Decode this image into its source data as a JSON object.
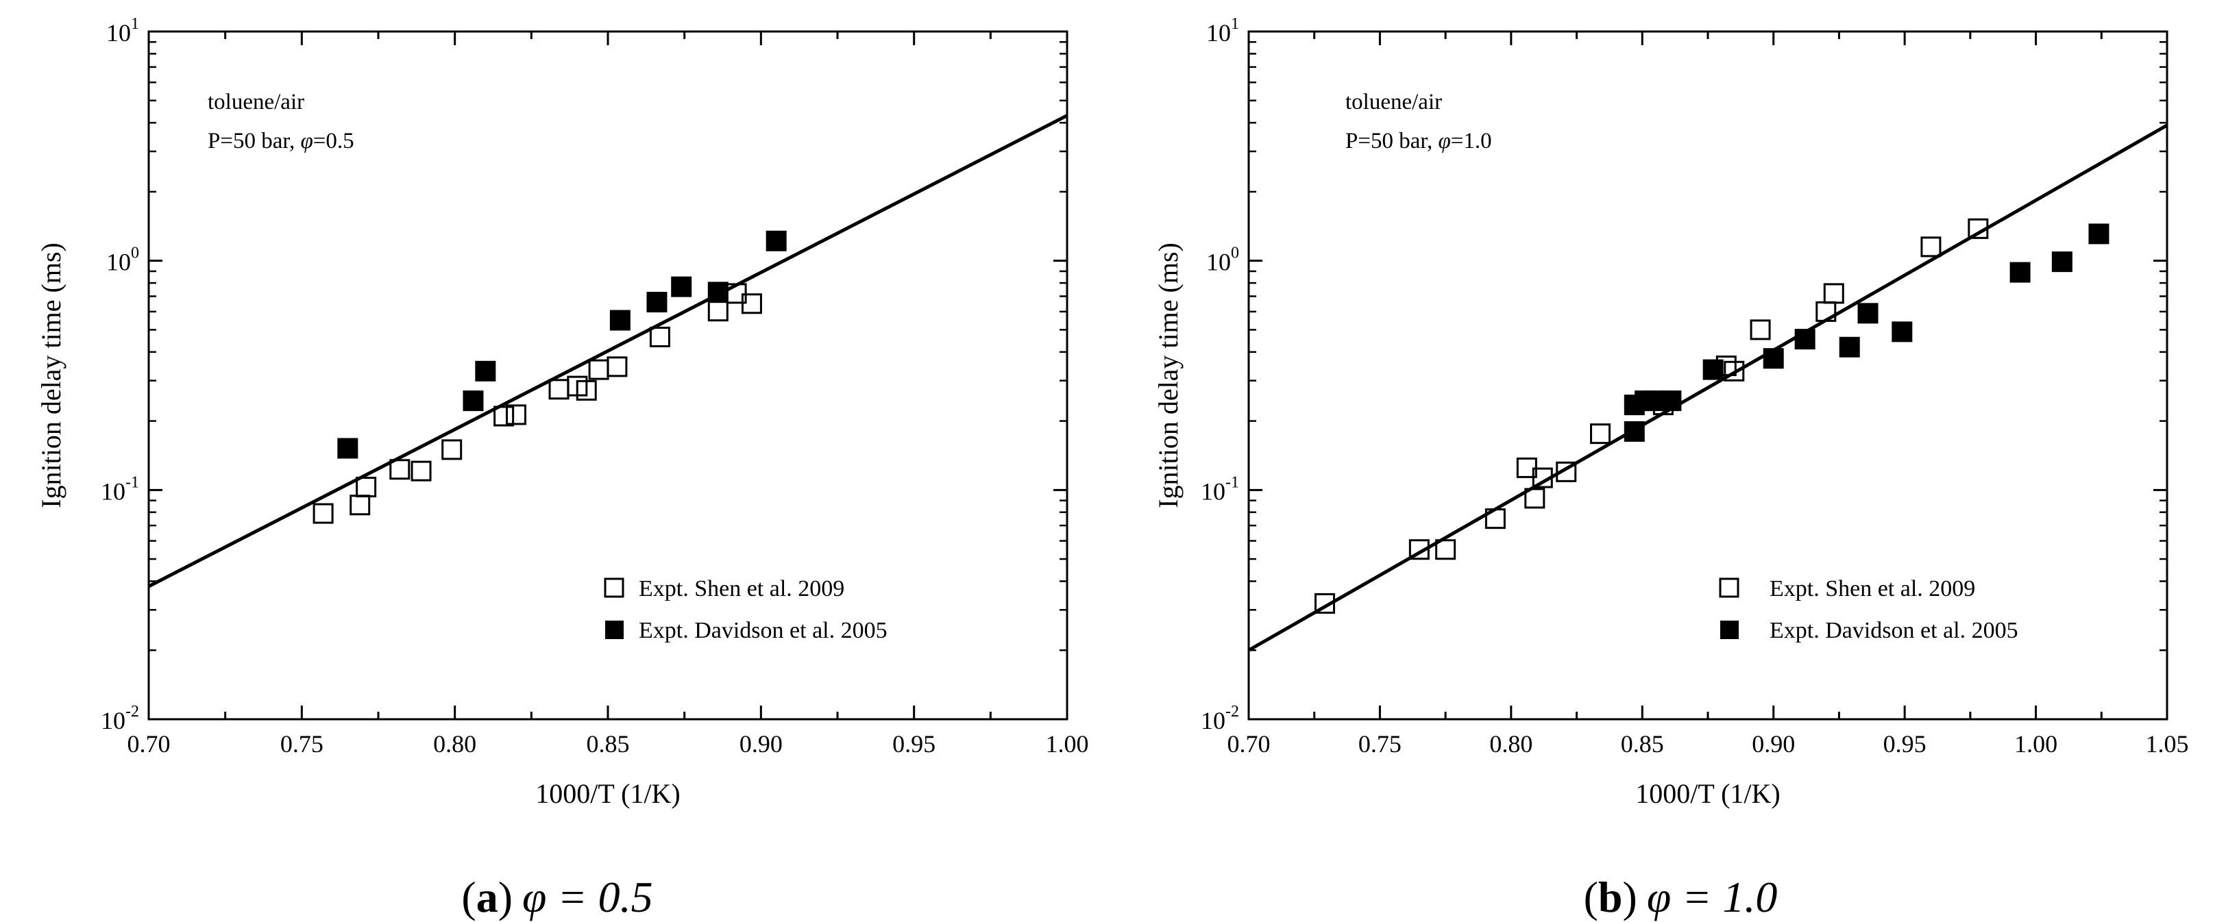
{
  "chart_data": [
    {
      "type": "scatter",
      "panel_label": "a",
      "caption": "φ = 0.5",
      "annotation": {
        "line1": "toluene/air",
        "line2_prefix": "P=50 bar, ",
        "line2_symbol": "φ",
        "line2_suffix": "=0.5"
      },
      "xlabel": "1000/T (1/K)",
      "ylabel": "Ignition delay time (ms)",
      "xlim": [
        0.7,
        1.0
      ],
      "ylim": [
        0.01,
        10
      ],
      "yscale": "log",
      "xticks": [
        "0.70",
        "0.75",
        "0.80",
        "0.85",
        "0.90",
        "0.95",
        "1.00"
      ],
      "yticks": [
        {
          "base": "10",
          "exp": "-2"
        },
        {
          "base": "10",
          "exp": "-1"
        },
        {
          "base": "10",
          "exp": "0"
        },
        {
          "base": "10",
          "exp": "1"
        }
      ],
      "legend_position": "lower-right",
      "fit_line": {
        "x": [
          0.7,
          1.0
        ],
        "y": [
          0.038,
          4.3
        ]
      },
      "series": [
        {
          "name": "Expt. Shen et al. 2009",
          "marker": "open-square",
          "points": [
            [
              0.757,
              0.079
            ],
            [
              0.769,
              0.086
            ],
            [
              0.771,
              0.103
            ],
            [
              0.782,
              0.123
            ],
            [
              0.789,
              0.121
            ],
            [
              0.799,
              0.15
            ],
            [
              0.816,
              0.21
            ],
            [
              0.82,
              0.213
            ],
            [
              0.834,
              0.275
            ],
            [
              0.84,
              0.284
            ],
            [
              0.843,
              0.272
            ],
            [
              0.847,
              0.335
            ],
            [
              0.853,
              0.345
            ],
            [
              0.867,
              0.465
            ],
            [
              0.886,
              0.603
            ],
            [
              0.892,
              0.72
            ],
            [
              0.897,
              0.65
            ]
          ]
        },
        {
          "name": "Expt. Davidson et al. 2005",
          "marker": "filled-square",
          "points": [
            [
              0.765,
              0.152
            ],
            [
              0.806,
              0.245
            ],
            [
              0.81,
              0.33
            ],
            [
              0.854,
              0.55
            ],
            [
              0.866,
              0.66
            ],
            [
              0.874,
              0.77
            ],
            [
              0.886,
              0.73
            ],
            [
              0.905,
              1.22
            ]
          ]
        }
      ]
    },
    {
      "type": "scatter",
      "panel_label": "b",
      "caption": "φ = 1.0",
      "annotation": {
        "line1": "toluene/air",
        "line2_prefix": "P=50 bar, ",
        "line2_symbol": "φ",
        "line2_suffix": "=1.0"
      },
      "xlabel": "1000/T (1/K)",
      "ylabel": "Ignition delay time (ms)",
      "xlim": [
        0.7,
        1.05
      ],
      "ylim": [
        0.01,
        10
      ],
      "yscale": "log",
      "xticks": [
        "0.70",
        "0.75",
        "0.80",
        "0.85",
        "0.90",
        "0.95",
        "1.00",
        "1.05"
      ],
      "yticks": [
        {
          "base": "10",
          "exp": "-2"
        },
        {
          "base": "10",
          "exp": "-1"
        },
        {
          "base": "10",
          "exp": "0"
        },
        {
          "base": "10",
          "exp": "1"
        }
      ],
      "legend_position": "lower-right",
      "fit_line": {
        "x": [
          0.7,
          1.05
        ],
        "y": [
          0.02,
          3.9
        ]
      },
      "series": [
        {
          "name": "Expt. Shen et al. 2009",
          "marker": "open-square",
          "points": [
            [
              0.729,
              0.032
            ],
            [
              0.765,
              0.055
            ],
            [
              0.775,
              0.055
            ],
            [
              0.794,
              0.075
            ],
            [
              0.806,
              0.125
            ],
            [
              0.809,
              0.092
            ],
            [
              0.812,
              0.113
            ],
            [
              0.821,
              0.12
            ],
            [
              0.834,
              0.176
            ],
            [
              0.858,
              0.235
            ],
            [
              0.882,
              0.348
            ],
            [
              0.885,
              0.33
            ],
            [
              0.895,
              0.5
            ],
            [
              0.92,
              0.6
            ],
            [
              0.923,
              0.72
            ],
            [
              0.96,
              1.15
            ],
            [
              0.978,
              1.38
            ]
          ]
        },
        {
          "name": "Expt. Davidson et al. 2005",
          "marker": "filled-square",
          "points": [
            [
              0.847,
              0.18
            ],
            [
              0.847,
              0.235
            ],
            [
              0.851,
              0.245
            ],
            [
              0.855,
              0.245
            ],
            [
              0.861,
              0.245
            ],
            [
              0.877,
              0.335
            ],
            [
              0.9,
              0.375
            ],
            [
              0.912,
              0.455
            ],
            [
              0.929,
              0.42
            ],
            [
              0.936,
              0.59
            ],
            [
              0.949,
              0.49
            ],
            [
              0.994,
              0.89
            ],
            [
              1.01,
              0.99
            ],
            [
              1.024,
              1.31
            ]
          ]
        }
      ]
    }
  ]
}
